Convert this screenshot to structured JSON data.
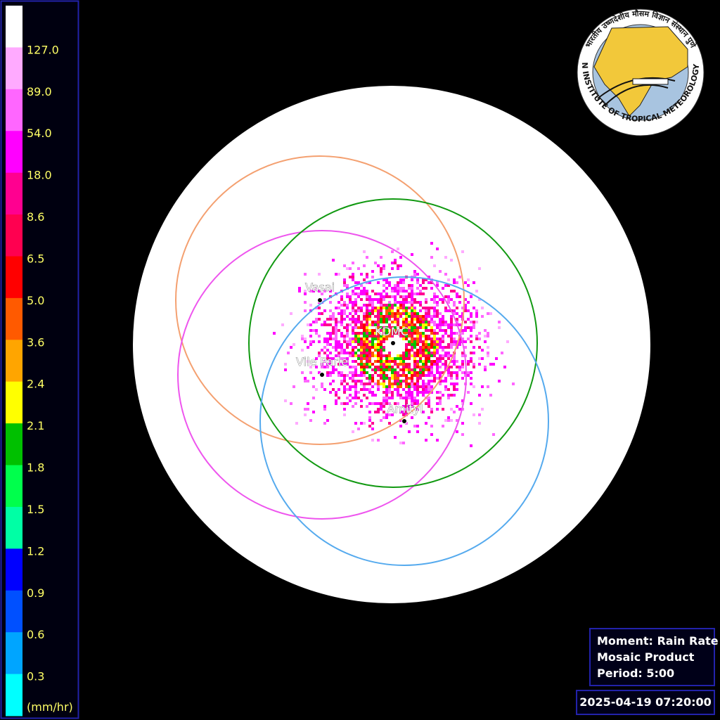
{
  "colorbar": {
    "colors": [
      "#ffffff",
      "#ffaaff",
      "#ff66ff",
      "#ff00ff",
      "#ff0090",
      "#ff0050",
      "#ff0000",
      "#ff5a00",
      "#ffa500",
      "#ffff00",
      "#00c000",
      "#00ff4c",
      "#00ffa5",
      "#0000ff",
      "#0050ff",
      "#00a5ff",
      "#00ffff"
    ],
    "labels": [
      "127.0",
      "89.0",
      "54.0",
      "18.0",
      "8.6",
      "6.5",
      "5.0",
      "3.6",
      "2.4",
      "2.1",
      "1.8",
      "1.5",
      "1.2",
      "0.9",
      "0.6",
      "0.3"
    ],
    "unit": "(mm/hr)"
  },
  "stations": [
    {
      "name": "Vasai",
      "ring": "#f4a070"
    },
    {
      "name": "Vile Parle",
      "ring": "#ee55ee"
    },
    {
      "name": "KDMC",
      "ring": "#119911"
    },
    {
      "name": "Amityl",
      "ring": "#55aaee"
    }
  ],
  "info": [
    "Moment: Rain Rate",
    "Mosaic Product",
    "Period: 5:00"
  ],
  "timestamp": "2025-04-19 07:20:00",
  "logo": {
    "english": "INDIAN INSTITUTE OF TROPICAL METEOROLOGY PUNE",
    "hindi": "भारतीय उष्णदेशीय मौसम विज्ञान संस्थान पुणे"
  }
}
